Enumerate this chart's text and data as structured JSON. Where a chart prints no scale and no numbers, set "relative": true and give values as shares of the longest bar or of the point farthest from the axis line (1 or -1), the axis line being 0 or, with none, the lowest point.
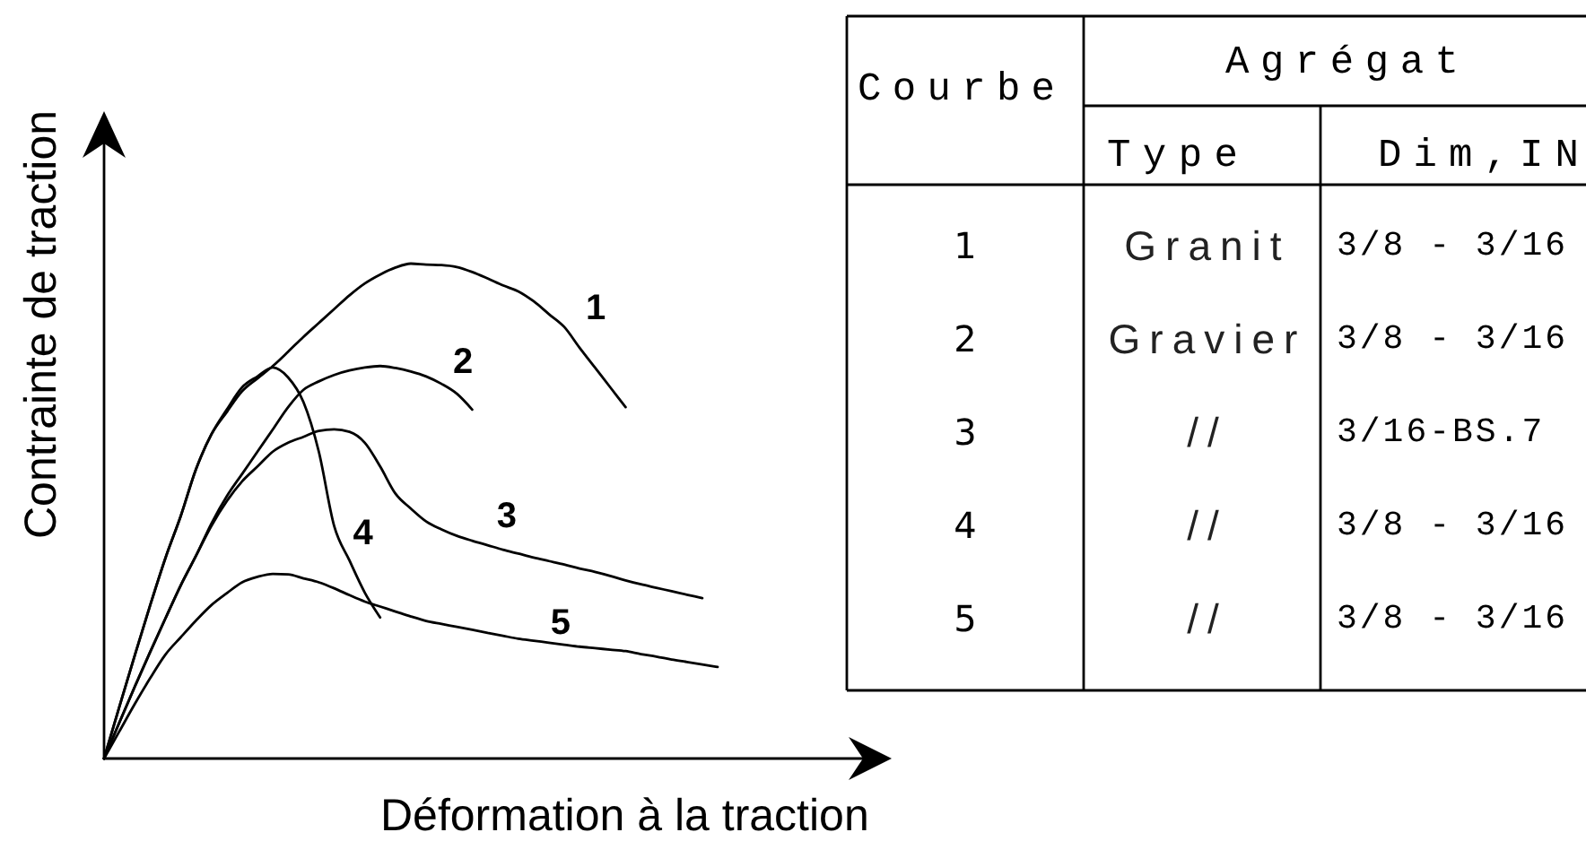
{
  "chart_data": {
    "type": "line",
    "xlabel": "Déformation à la traction",
    "ylabel": "Contrainte de traction",
    "relative": true,
    "categories": [
      null,
      null,
      null,
      null,
      null,
      null,
      null,
      null,
      null,
      null,
      null,
      null,
      null,
      null,
      null,
      null,
      null,
      null,
      null,
      null,
      null,
      null,
      null,
      null,
      null,
      null,
      null,
      null,
      null,
      null,
      null,
      null,
      null,
      null,
      null,
      null,
      null,
      null,
      null,
      null,
      null
    ],
    "series": [
      {
        "name": "1",
        "color": "#000000",
        "values": [
          0,
          0.105,
          0.208,
          0.309,
          0.405,
          0.49,
          0.585,
          0.655,
          0.7,
          0.742,
          0.768,
          0.793,
          0.822,
          0.852,
          0.88,
          0.908,
          0.936,
          0.96,
          0.978,
          0.992,
          1,
          0.998,
          0.997,
          0.993,
          0.983,
          0.97,
          0.956,
          0.944,
          0.924,
          0.898,
          0.872,
          0.83,
          0.79,
          0.75,
          0.71,
          null,
          null,
          null,
          null,
          null,
          null
        ]
      },
      {
        "name": "2",
        "color": "#000000",
        "values": [
          0,
          0.073,
          0.145,
          0.215,
          0.283,
          0.35,
          0.41,
          0.475,
          0.53,
          0.575,
          0.62,
          0.665,
          0.71,
          0.745,
          0.762,
          0.775,
          0.784,
          0.79,
          0.793,
          0.789,
          0.782,
          0.772,
          0.757,
          0.737,
          0.705,
          null,
          null,
          null,
          null,
          null,
          null,
          null,
          null,
          null,
          null,
          null,
          null,
          null,
          null,
          null,
          null
        ]
      },
      {
        "name": "3",
        "color": "#000000",
        "values": [
          0,
          0.073,
          0.145,
          0.215,
          0.283,
          0.35,
          0.41,
          0.47,
          0.52,
          0.56,
          0.59,
          0.62,
          0.638,
          0.65,
          0.662,
          0.665,
          0.66,
          0.638,
          0.59,
          0.535,
          0.505,
          0.479,
          0.463,
          0.45,
          0.44,
          0.431,
          0.422,
          0.414,
          0.406,
          0.399,
          0.392,
          0.384,
          0.377,
          0.369,
          0.36,
          0.352,
          0.345,
          0.338,
          0.331,
          0.324,
          null
        ]
      },
      {
        "name": "4",
        "color": "#000000",
        "values": [
          0,
          0.105,
          0.208,
          0.309,
          0.405,
          0.49,
          0.585,
          0.655,
          0.705,
          0.75,
          0.772,
          0.79,
          0.77,
          0.72,
          0.62,
          0.47,
          0.4,
          0.335,
          0.285,
          null,
          null,
          null,
          null,
          null,
          null,
          null,
          null,
          null,
          null,
          null,
          null,
          null,
          null,
          null,
          null,
          null,
          null,
          null,
          null,
          null,
          null
        ]
      },
      {
        "name": "5",
        "color": "#000000",
        "values": [
          0,
          0.055,
          0.11,
          0.162,
          0.21,
          0.245,
          0.279,
          0.31,
          0.334,
          0.356,
          0.367,
          0.373,
          0.372,
          0.364,
          0.356,
          0.344,
          0.33,
          0.317,
          0.307,
          0.297,
          0.287,
          0.278,
          0.272,
          0.266,
          0.26,
          0.254,
          0.248,
          0.242,
          0.238,
          0.234,
          0.23,
          0.226,
          0.223,
          0.22,
          0.217,
          0.211,
          0.206,
          0.2,
          0.195,
          0.19,
          0.185
        ]
      }
    ],
    "annotations": [
      "Courbe",
      "Agrégat",
      "Type",
      "Dim,IN",
      "1",
      "Granit",
      "3/8 - 3/16",
      "2",
      "Gravier",
      "3/8 - 3/16",
      "3",
      "//",
      "3/16-BS.7",
      "4",
      "//",
      "3/8 - 3/16",
      "5",
      "//",
      "3/8 - 3/16"
    ]
  }
}
